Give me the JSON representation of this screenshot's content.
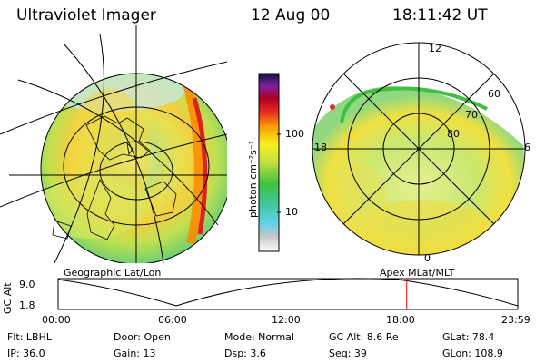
{
  "header": {
    "instrument": "Ultraviolet Imager",
    "date": "12 Aug 00",
    "time": "18:11:42 UT"
  },
  "colorbar": {
    "unit_label": "photon cm⁻²s⁻¹",
    "tick_100": "100",
    "tick_10": "10",
    "scale": "log"
  },
  "left_panel": {
    "caption": "Geographic Lat/Lon"
  },
  "right_panel": {
    "caption": "Apex MLat/MLT",
    "lat_labels": [
      "60",
      "70",
      "80"
    ],
    "mlt_labels": {
      "top": "12",
      "left": "18",
      "right": "6",
      "bottom": "0"
    }
  },
  "altitude_plot": {
    "ylabel": "GC Alt",
    "yticks": [
      "9.0",
      "1.8"
    ],
    "xticks": [
      "00:00",
      "06:00",
      "12:00",
      "18:00",
      "23:59"
    ],
    "marker_time_hours": 18.2,
    "marker_color": "#ff0000"
  },
  "footer": {
    "flt": "Flt: LBHL",
    "door": "Door: Open",
    "mode": "Mode: Normal",
    "gc_alt": "GC Alt: 8.6 Re",
    "glat": "GLat:  78.4",
    "ip": "IP: 36.0",
    "gain": "Gain: 13",
    "dsp": "Dsp:     3.6",
    "seq": "Seq: 39",
    "glon": "GLon: 108.9"
  }
}
